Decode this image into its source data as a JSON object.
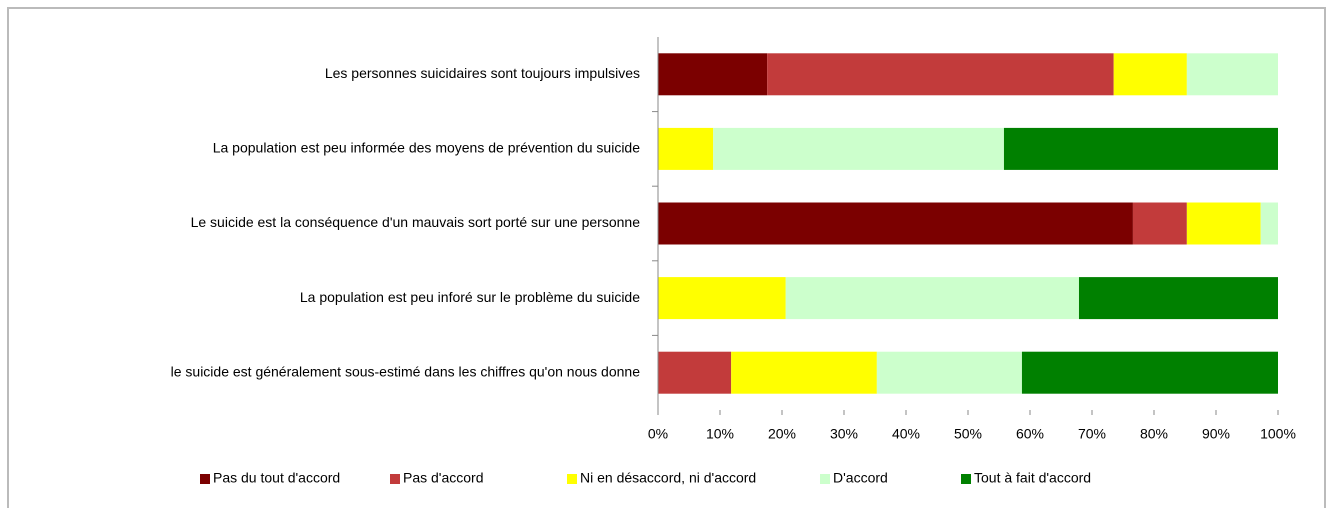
{
  "chart_data": {
    "type": "stacked-bar-horizontal",
    "categories": [
      "Les personnes suicidaires sont toujours impulsives",
      "La population est peu informée des moyens de prévention du suicide",
      "Le suicide est la conséquence d'un mauvais sort porté sur une personne",
      "La population est peu inforé sur le problème du suicide",
      "le suicide est généralement sous-estimé dans les chiffres qu'on nous donne"
    ],
    "series": [
      {
        "name": "Pas du tout d'accord",
        "color": "#7b0000",
        "values": [
          17.6,
          0,
          76.6,
          0,
          0
        ]
      },
      {
        "name": "Pas d'accord",
        "color": "#c23b3b",
        "values": [
          55.9,
          0,
          8.7,
          0,
          11.8
        ]
      },
      {
        "name": "Ni en désaccord, ni d'accord",
        "color": "#ffff00",
        "values": [
          11.8,
          8.9,
          11.9,
          20.6,
          23.5
        ]
      },
      {
        "name": "D'accord",
        "color": "#ccffcc",
        "values": [
          14.7,
          46.9,
          2.8,
          47.3,
          23.4
        ]
      },
      {
        "name": "Tout à fait d'accord",
        "color": "#008000",
        "values": [
          0,
          44.2,
          0,
          32.1,
          41.3
        ]
      }
    ],
    "xlim": [
      0,
      100
    ],
    "xticks": [
      {
        "value": 0,
        "label": "0%"
      },
      {
        "value": 10,
        "label": "10%"
      },
      {
        "value": 20,
        "label": "20%"
      },
      {
        "value": 30,
        "label": "30%"
      },
      {
        "value": 40,
        "label": "40%"
      },
      {
        "value": 50,
        "label": "50%"
      },
      {
        "value": 60,
        "label": "60%"
      },
      {
        "value": 70,
        "label": "70%"
      },
      {
        "value": 80,
        "label": "80%"
      },
      {
        "value": 90,
        "label": "90%"
      },
      {
        "value": 100,
        "label": "100%"
      }
    ],
    "legend": "bottom"
  }
}
